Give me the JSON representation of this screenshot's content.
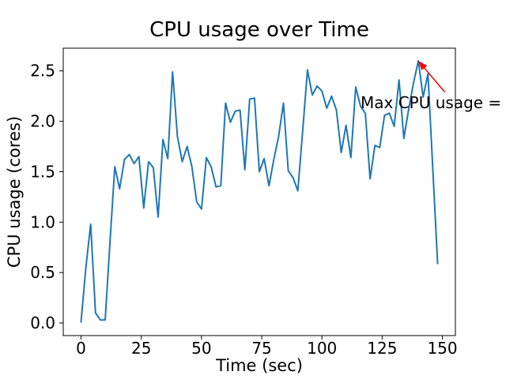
{
  "chart_data": {
    "type": "line",
    "title": "CPU usage over Time",
    "xlabel": "Time (sec)",
    "ylabel": "CPU usage (cores)",
    "x": [
      0,
      2,
      4,
      6,
      8,
      10,
      12,
      14,
      16,
      18,
      20,
      22,
      24,
      26,
      28,
      30,
      32,
      34,
      36,
      38,
      40,
      42,
      44,
      46,
      48,
      50,
      52,
      54,
      56,
      58,
      60,
      62,
      64,
      66,
      68,
      70,
      72,
      74,
      76,
      78,
      80,
      82,
      84,
      86,
      88,
      90,
      92,
      94,
      96,
      98,
      100,
      102,
      104,
      106,
      108,
      110,
      112,
      114,
      116,
      118,
      120,
      122,
      124,
      126,
      128,
      130,
      132,
      134,
      136,
      138,
      140,
      142,
      144,
      146,
      148
    ],
    "series": [
      {
        "color": "#1f77b4",
        "values": [
          0.01,
          0.55,
          0.98,
          0.1,
          0.03,
          0.03,
          0.8,
          1.55,
          1.33,
          1.62,
          1.67,
          1.58,
          1.65,
          1.14,
          1.6,
          1.54,
          1.05,
          1.82,
          1.63,
          2.49,
          1.85,
          1.6,
          1.75,
          1.55,
          1.2,
          1.13,
          1.64,
          1.55,
          1.35,
          1.36,
          2.18,
          1.99,
          2.1,
          2.11,
          1.52,
          2.22,
          2.23,
          1.5,
          1.63,
          1.36,
          1.62,
          1.85,
          2.18,
          1.51,
          1.44,
          1.31,
          1.9,
          2.51,
          2.26,
          2.35,
          2.3,
          2.13,
          2.25,
          2.11,
          1.69,
          1.96,
          1.64,
          2.34,
          2.15,
          2.08,
          1.43,
          1.76,
          1.74,
          2.06,
          2.08,
          1.95,
          2.41,
          1.83,
          2.12,
          2.38,
          2.6,
          2.24,
          2.47,
          1.53,
          0.59
        ]
      }
    ],
    "xlim": [
      -7.4,
      155.4
    ],
    "ylim": [
      -0.125,
      2.725
    ],
    "xticks": [
      0,
      25,
      50,
      75,
      100,
      125,
      150
    ],
    "xtick_labels": [
      "0",
      "25",
      "50",
      "75",
      "100",
      "125",
      "150"
    ],
    "yticks": [
      0,
      0.5,
      1,
      1.5,
      2,
      2.5
    ],
    "ytick_labels": [
      "0.0",
      "0.5",
      "1.0",
      "1.5",
      "2.0",
      "2.5"
    ],
    "grid": false,
    "legend": false,
    "axis_color": "#000000",
    "background_color": "#ffffff",
    "annotation": {
      "text": "Max CPU usage =",
      "color": "#ff0000",
      "xy": [
        140,
        2.6
      ],
      "xytext": [
        116,
        2.13
      ],
      "arrow_tail": [
        151,
        2.29
      ]
    }
  }
}
